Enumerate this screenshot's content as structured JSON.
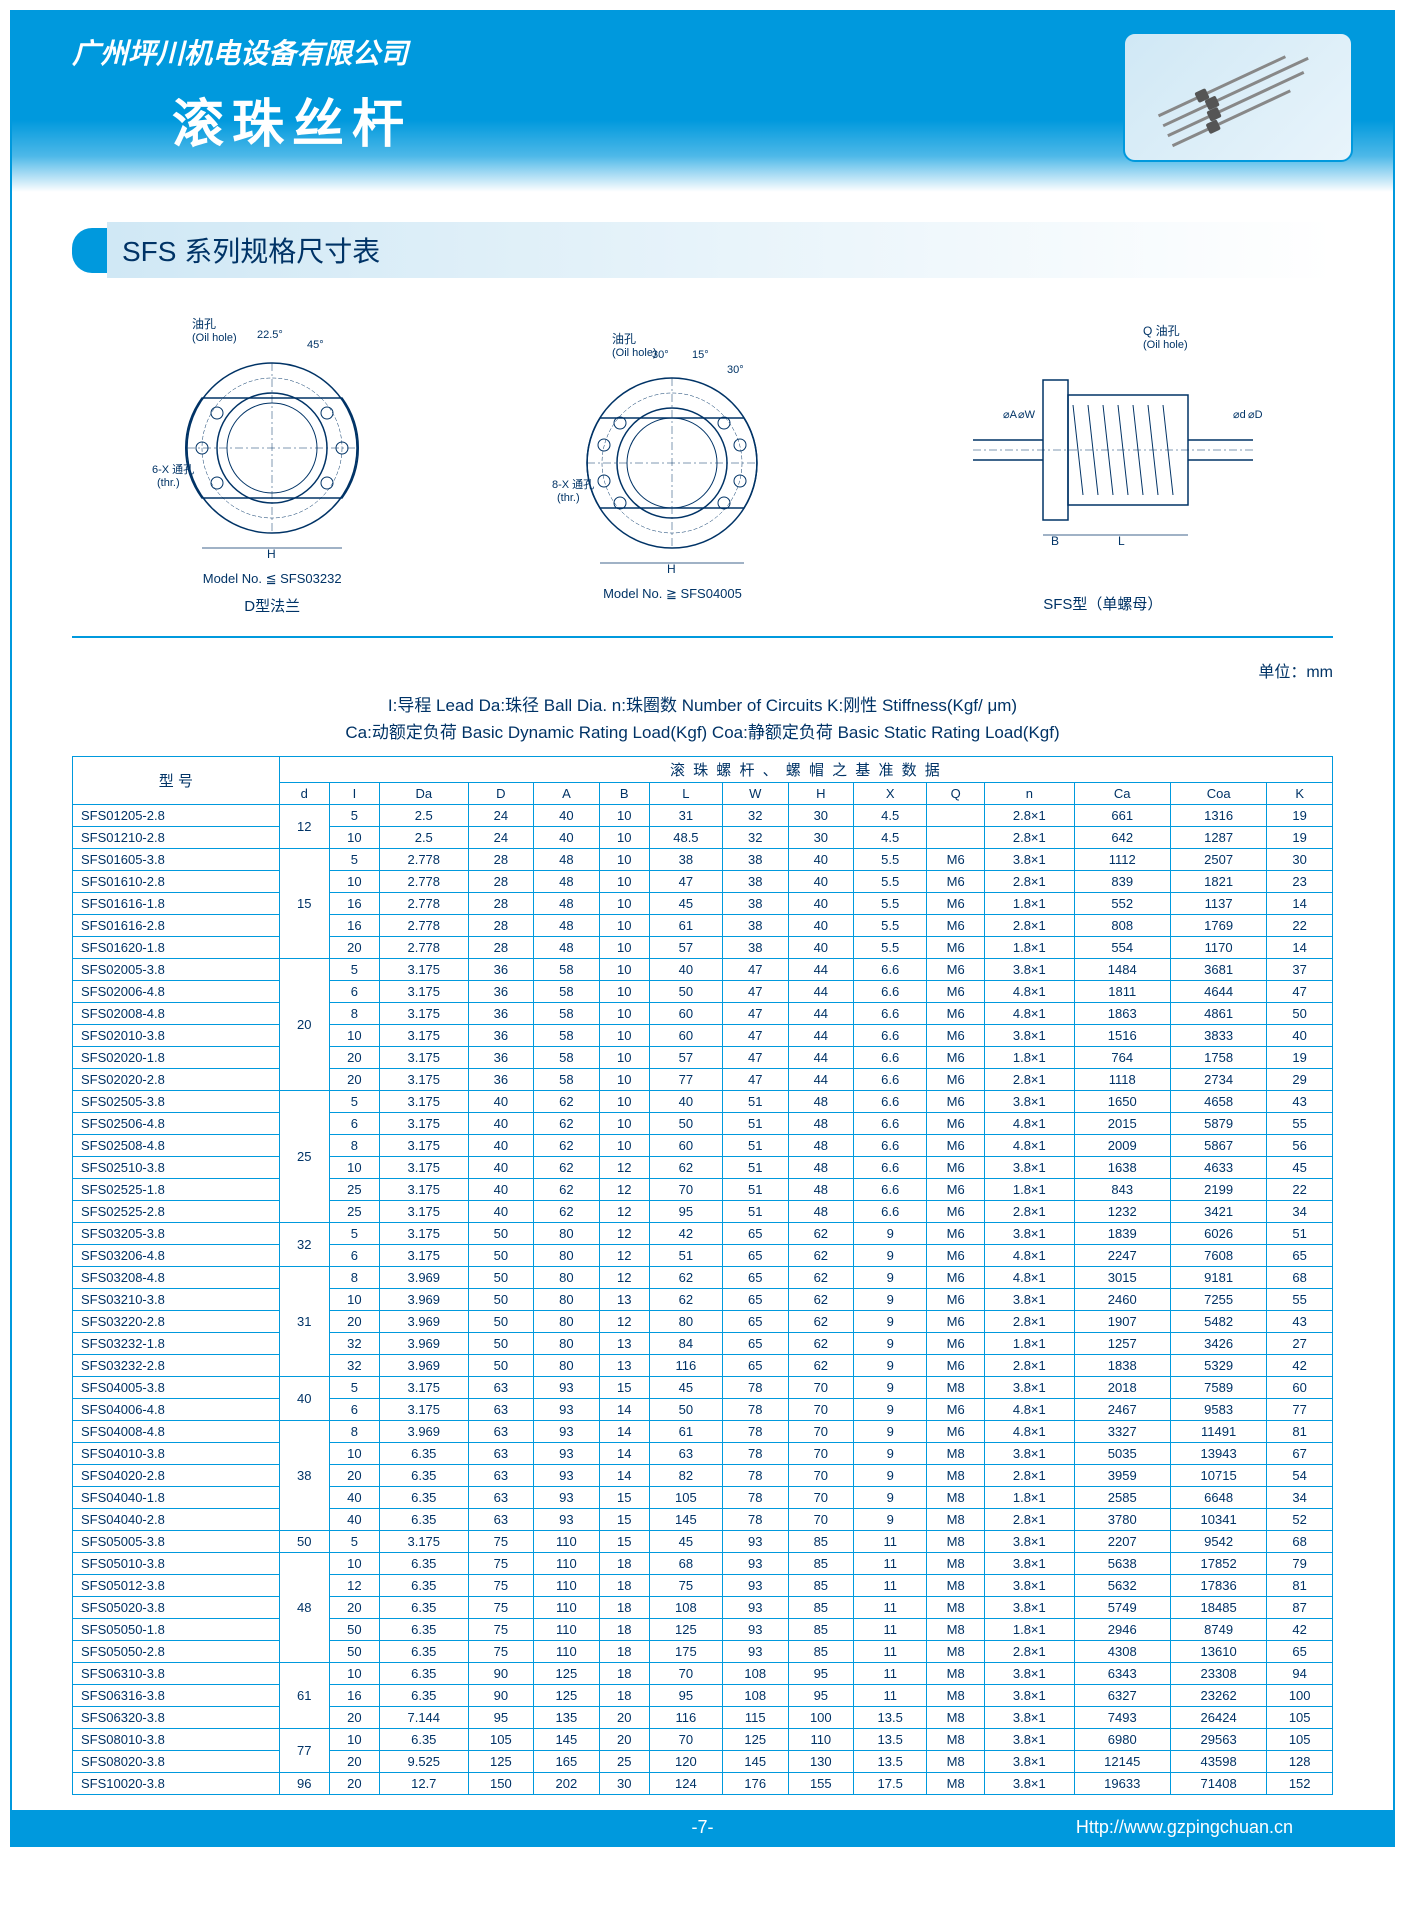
{
  "header": {
    "company": "广州坪川机电设备有限公司",
    "title": "滚珠丝杆"
  },
  "section": {
    "title": "SFS 系列规格尺寸表"
  },
  "diagram": {
    "oil_hole_cn": "油孔",
    "oil_hole_en": "(Oil hole)",
    "q_oil_hole": "Q 油孔",
    "thr_cn": "6-X 通孔",
    "thr_en": "(thr.)",
    "thr8_cn": "8-X 通孔",
    "angle1": "22.5°",
    "angle2": "45°",
    "angle3": "30°",
    "angle4": "15°",
    "angle5": "30°",
    "model1": "Model No. ≦ SFS03232",
    "model2": "Model No. ≧ SFS04005",
    "flange_d": "D型法兰",
    "sfs_type": "SFS型（单螺母）",
    "dims": "B  L"
  },
  "unit": "单位：mm",
  "legend": {
    "line1": "I:导程 Lead   Da:珠径 Ball Dia.   n:珠圈数 Number of Circuits    K:刚性 Stiffness(Kgf/ μm)",
    "line2": "Ca:动额定负荷 Basic Dynamic Rating Load(Kgf)   Coa:静额定负荷 Basic Static Rating Load(Kgf)"
  },
  "table": {
    "model_header": "型 号",
    "sub_header": "滚 珠 螺 杆 、 螺 帽 之 基 准 数 据",
    "columns": [
      "d",
      "I",
      "Da",
      "D",
      "A",
      "B",
      "L",
      "W",
      "H",
      "X",
      "Q",
      "n",
      "Ca",
      "Coa",
      "K"
    ],
    "rows": [
      {
        "model": "SFS01205-2.8",
        "d": "12",
        "cells": [
          "5",
          "2.5",
          "24",
          "40",
          "10",
          "31",
          "32",
          "30",
          "4.5",
          "",
          "2.8×1",
          "661",
          "1316",
          "19"
        ],
        "d_rowspan": 2
      },
      {
        "model": "SFS01210-2.8",
        "cells": [
          "10",
          "2.5",
          "24",
          "40",
          "10",
          "48.5",
          "32",
          "30",
          "4.5",
          "",
          "2.8×1",
          "642",
          "1287",
          "19"
        ]
      },
      {
        "model": "SFS01605-3.8",
        "d": "15",
        "cells": [
          "5",
          "2.778",
          "28",
          "48",
          "10",
          "38",
          "38",
          "40",
          "5.5",
          "M6",
          "3.8×1",
          "1112",
          "2507",
          "30"
        ],
        "d_rowspan": 5
      },
      {
        "model": "SFS01610-2.8",
        "cells": [
          "10",
          "2.778",
          "28",
          "48",
          "10",
          "47",
          "38",
          "40",
          "5.5",
          "M6",
          "2.8×1",
          "839",
          "1821",
          "23"
        ]
      },
      {
        "model": "SFS01616-1.8",
        "cells": [
          "16",
          "2.778",
          "28",
          "48",
          "10",
          "45",
          "38",
          "40",
          "5.5",
          "M6",
          "1.8×1",
          "552",
          "1137",
          "14"
        ]
      },
      {
        "model": "SFS01616-2.8",
        "cells": [
          "16",
          "2.778",
          "28",
          "48",
          "10",
          "61",
          "38",
          "40",
          "5.5",
          "M6",
          "2.8×1",
          "808",
          "1769",
          "22"
        ]
      },
      {
        "model": "SFS01620-1.8",
        "cells": [
          "20",
          "2.778",
          "28",
          "48",
          "10",
          "57",
          "38",
          "40",
          "5.5",
          "M6",
          "1.8×1",
          "554",
          "1170",
          "14"
        ]
      },
      {
        "model": "SFS02005-3.8",
        "d": "20",
        "cells": [
          "5",
          "3.175",
          "36",
          "58",
          "10",
          "40",
          "47",
          "44",
          "6.6",
          "M6",
          "3.8×1",
          "1484",
          "3681",
          "37"
        ],
        "d_rowspan": 6
      },
      {
        "model": "SFS02006-4.8",
        "cells": [
          "6",
          "3.175",
          "36",
          "58",
          "10",
          "50",
          "47",
          "44",
          "6.6",
          "M6",
          "4.8×1",
          "1811",
          "4644",
          "47"
        ]
      },
      {
        "model": "SFS02008-4.8",
        "cells": [
          "8",
          "3.175",
          "36",
          "58",
          "10",
          "60",
          "47",
          "44",
          "6.6",
          "M6",
          "4.8×1",
          "1863",
          "4861",
          "50"
        ]
      },
      {
        "model": "SFS02010-3.8",
        "cells": [
          "10",
          "3.175",
          "36",
          "58",
          "10",
          "60",
          "47",
          "44",
          "6.6",
          "M6",
          "3.8×1",
          "1516",
          "3833",
          "40"
        ]
      },
      {
        "model": "SFS02020-1.8",
        "cells": [
          "20",
          "3.175",
          "36",
          "58",
          "10",
          "57",
          "47",
          "44",
          "6.6",
          "M6",
          "1.8×1",
          "764",
          "1758",
          "19"
        ]
      },
      {
        "model": "SFS02020-2.8",
        "cells": [
          "20",
          "3.175",
          "36",
          "58",
          "10",
          "77",
          "47",
          "44",
          "6.6",
          "M6",
          "2.8×1",
          "1118",
          "2734",
          "29"
        ]
      },
      {
        "model": "SFS02505-3.8",
        "d": "25",
        "cells": [
          "5",
          "3.175",
          "40",
          "62",
          "10",
          "40",
          "51",
          "48",
          "6.6",
          "M6",
          "3.8×1",
          "1650",
          "4658",
          "43"
        ],
        "d_rowspan": 6
      },
      {
        "model": "SFS02506-4.8",
        "cells": [
          "6",
          "3.175",
          "40",
          "62",
          "10",
          "50",
          "51",
          "48",
          "6.6",
          "M6",
          "4.8×1",
          "2015",
          "5879",
          "55"
        ]
      },
      {
        "model": "SFS02508-4.8",
        "cells": [
          "8",
          "3.175",
          "40",
          "62",
          "10",
          "60",
          "51",
          "48",
          "6.6",
          "M6",
          "4.8×1",
          "2009",
          "5867",
          "56"
        ]
      },
      {
        "model": "SFS02510-3.8",
        "cells": [
          "10",
          "3.175",
          "40",
          "62",
          "12",
          "62",
          "51",
          "48",
          "6.6",
          "M6",
          "3.8×1",
          "1638",
          "4633",
          "45"
        ]
      },
      {
        "model": "SFS02525-1.8",
        "cells": [
          "25",
          "3.175",
          "40",
          "62",
          "12",
          "70",
          "51",
          "48",
          "6.6",
          "M6",
          "1.8×1",
          "843",
          "2199",
          "22"
        ]
      },
      {
        "model": "SFS02525-2.8",
        "cells": [
          "25",
          "3.175",
          "40",
          "62",
          "12",
          "95",
          "51",
          "48",
          "6.6",
          "M6",
          "2.8×1",
          "1232",
          "3421",
          "34"
        ]
      },
      {
        "model": "SFS03205-3.8",
        "d": "32",
        "cells": [
          "5",
          "3.175",
          "50",
          "80",
          "12",
          "42",
          "65",
          "62",
          "9",
          "M6",
          "3.8×1",
          "1839",
          "6026",
          "51"
        ],
        "d_rowspan": 2
      },
      {
        "model": "SFS03206-4.8",
        "cells": [
          "6",
          "3.175",
          "50",
          "80",
          "12",
          "51",
          "65",
          "62",
          "9",
          "M6",
          "4.8×1",
          "2247",
          "7608",
          "65"
        ]
      },
      {
        "model": "SFS03208-4.8",
        "d": "31",
        "cells": [
          "8",
          "3.969",
          "50",
          "80",
          "12",
          "62",
          "65",
          "62",
          "9",
          "M6",
          "4.8×1",
          "3015",
          "9181",
          "68"
        ],
        "d_rowspan": 5
      },
      {
        "model": "SFS03210-3.8",
        "cells": [
          "10",
          "3.969",
          "50",
          "80",
          "13",
          "62",
          "65",
          "62",
          "9",
          "M6",
          "3.8×1",
          "2460",
          "7255",
          "55"
        ]
      },
      {
        "model": "SFS03220-2.8",
        "cells": [
          "20",
          "3.969",
          "50",
          "80",
          "12",
          "80",
          "65",
          "62",
          "9",
          "M6",
          "2.8×1",
          "1907",
          "5482",
          "43"
        ]
      },
      {
        "model": "SFS03232-1.8",
        "cells": [
          "32",
          "3.969",
          "50",
          "80",
          "13",
          "84",
          "65",
          "62",
          "9",
          "M6",
          "1.8×1",
          "1257",
          "3426",
          "27"
        ]
      },
      {
        "model": "SFS03232-2.8",
        "cells": [
          "32",
          "3.969",
          "50",
          "80",
          "13",
          "116",
          "65",
          "62",
          "9",
          "M6",
          "2.8×1",
          "1838",
          "5329",
          "42"
        ]
      },
      {
        "model": "SFS04005-3.8",
        "d": "40",
        "cells": [
          "5",
          "3.175",
          "63",
          "93",
          "15",
          "45",
          "78",
          "70",
          "9",
          "M8",
          "3.8×1",
          "2018",
          "7589",
          "60"
        ],
        "d_rowspan": 2
      },
      {
        "model": "SFS04006-4.8",
        "cells": [
          "6",
          "3.175",
          "63",
          "93",
          "14",
          "50",
          "78",
          "70",
          "9",
          "M6",
          "4.8×1",
          "2467",
          "9583",
          "77"
        ]
      },
      {
        "model": "SFS04008-4.8",
        "d": "38",
        "cells": [
          "8",
          "3.969",
          "63",
          "93",
          "14",
          "61",
          "78",
          "70",
          "9",
          "M6",
          "4.8×1",
          "3327",
          "11491",
          "81"
        ],
        "d_rowspan": 5
      },
      {
        "model": "SFS04010-3.8",
        "cells": [
          "10",
          "6.35",
          "63",
          "93",
          "14",
          "63",
          "78",
          "70",
          "9",
          "M8",
          "3.8×1",
          "5035",
          "13943",
          "67"
        ]
      },
      {
        "model": "SFS04020-2.8",
        "cells": [
          "20",
          "6.35",
          "63",
          "93",
          "14",
          "82",
          "78",
          "70",
          "9",
          "M8",
          "2.8×1",
          "3959",
          "10715",
          "54"
        ]
      },
      {
        "model": "SFS04040-1.8",
        "cells": [
          "40",
          "6.35",
          "63",
          "93",
          "15",
          "105",
          "78",
          "70",
          "9",
          "M8",
          "1.8×1",
          "2585",
          "6648",
          "34"
        ]
      },
      {
        "model": "SFS04040-2.8",
        "cells": [
          "40",
          "6.35",
          "63",
          "93",
          "15",
          "145",
          "78",
          "70",
          "9",
          "M8",
          "2.8×1",
          "3780",
          "10341",
          "52"
        ]
      },
      {
        "model": "SFS05005-3.8",
        "d": "50",
        "cells": [
          "5",
          "3.175",
          "75",
          "110",
          "15",
          "45",
          "93",
          "85",
          "11",
          "M8",
          "3.8×1",
          "2207",
          "9542",
          "68"
        ],
        "d_rowspan": 1
      },
      {
        "model": "SFS05010-3.8",
        "d": "48",
        "cells": [
          "10",
          "6.35",
          "75",
          "110",
          "18",
          "68",
          "93",
          "85",
          "11",
          "M8",
          "3.8×1",
          "5638",
          "17852",
          "79"
        ],
        "d_rowspan": 5
      },
      {
        "model": "SFS05012-3.8",
        "cells": [
          "12",
          "6.35",
          "75",
          "110",
          "18",
          "75",
          "93",
          "85",
          "11",
          "M8",
          "3.8×1",
          "5632",
          "17836",
          "81"
        ]
      },
      {
        "model": "SFS05020-3.8",
        "cells": [
          "20",
          "6.35",
          "75",
          "110",
          "18",
          "108",
          "93",
          "85",
          "11",
          "M8",
          "3.8×1",
          "5749",
          "18485",
          "87"
        ]
      },
      {
        "model": "SFS05050-1.8",
        "cells": [
          "50",
          "6.35",
          "75",
          "110",
          "18",
          "125",
          "93",
          "85",
          "11",
          "M8",
          "1.8×1",
          "2946",
          "8749",
          "42"
        ]
      },
      {
        "model": "SFS05050-2.8",
        "cells": [
          "50",
          "6.35",
          "75",
          "110",
          "18",
          "175",
          "93",
          "85",
          "11",
          "M8",
          "2.8×1",
          "4308",
          "13610",
          "65"
        ]
      },
      {
        "model": "SFS06310-3.8",
        "d": "61",
        "cells": [
          "10",
          "6.35",
          "90",
          "125",
          "18",
          "70",
          "108",
          "95",
          "11",
          "M8",
          "3.8×1",
          "6343",
          "23308",
          "94"
        ],
        "d_rowspan": 3
      },
      {
        "model": "SFS06316-3.8",
        "cells": [
          "16",
          "6.35",
          "90",
          "125",
          "18",
          "95",
          "108",
          "95",
          "11",
          "M8",
          "3.8×1",
          "6327",
          "23262",
          "100"
        ]
      },
      {
        "model": "SFS06320-3.8",
        "cells": [
          "20",
          "7.144",
          "95",
          "135",
          "20",
          "116",
          "115",
          "100",
          "13.5",
          "M8",
          "3.8×1",
          "7493",
          "26424",
          "105"
        ]
      },
      {
        "model": "SFS08010-3.8",
        "d": "77",
        "cells": [
          "10",
          "6.35",
          "105",
          "145",
          "20",
          "70",
          "125",
          "110",
          "13.5",
          "M8",
          "3.8×1",
          "6980",
          "29563",
          "105"
        ],
        "d_rowspan": 2
      },
      {
        "model": "SFS08020-3.8",
        "cells": [
          "20",
          "9.525",
          "125",
          "165",
          "25",
          "120",
          "145",
          "130",
          "13.5",
          "M8",
          "3.8×1",
          "12145",
          "43598",
          "128"
        ]
      },
      {
        "model": "SFS10020-3.8",
        "d": "96",
        "cells": [
          "20",
          "12.7",
          "150",
          "202",
          "30",
          "124",
          "176",
          "155",
          "17.5",
          "M8",
          "3.8×1",
          "19633",
          "71408",
          "152"
        ],
        "d_rowspan": 1
      }
    ]
  },
  "footer": {
    "page": "-7-",
    "url": "Http://www.gzpingchuan.cn"
  }
}
